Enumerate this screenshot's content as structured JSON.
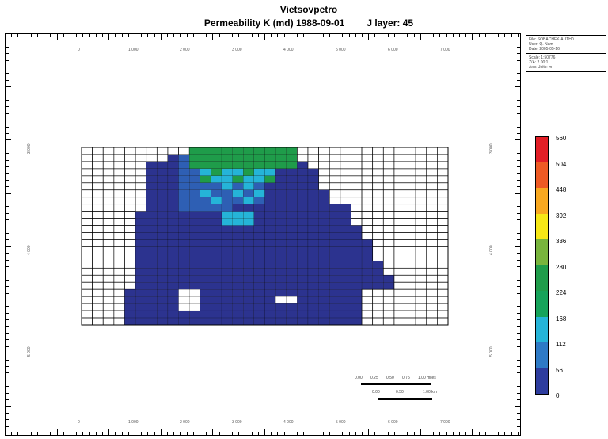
{
  "header": {
    "company": "Vietsovpetro",
    "subtitle": "Permeability K (md) 1988-09-01",
    "layer": "J layer: 45"
  },
  "x_axis_labels": [
    "0",
    "1 000",
    "2 000",
    "3 000",
    "4 000",
    "5 000",
    "6 000",
    "7 000"
  ],
  "y_axis_labels": [
    "3 000",
    "4 000",
    "5 000"
  ],
  "info_box": {
    "lines_top": [
      "File: SOBACHEK-AUTH0",
      "User: Q. Nam",
      "Date: 2005-05-16"
    ],
    "lines_bottom": [
      "Scale: 1:50776",
      "Z/A: 2.00:1",
      "Axis Units: m"
    ]
  },
  "legend": {
    "values": [
      "560",
      "504",
      "448",
      "392",
      "336",
      "280",
      "224",
      "168",
      "112",
      "56",
      "0"
    ],
    "colors": [
      "#e21e26",
      "#ee5a24",
      "#f8a820",
      "#f6e716",
      "#78b43c",
      "#1f9c4a",
      "#16a35a",
      "#25b4d8",
      "#2e7ac6",
      "#2d3c9e",
      "#2c338f"
    ]
  },
  "scale_bar": {
    "miles_labels": [
      "0.00",
      "0.25",
      "0.50",
      "0.75",
      "1.00 miles"
    ],
    "km_labels": [
      "0.00",
      "0.50",
      "1.00 km"
    ]
  },
  "map": {
    "colors": {
      "background": "#ffffff",
      "deep": "#2c338f",
      "mid": "#2e5fb4",
      "light": "#25b4d8",
      "green": "#1f9c4a",
      "gridline": "#000000"
    }
  }
}
